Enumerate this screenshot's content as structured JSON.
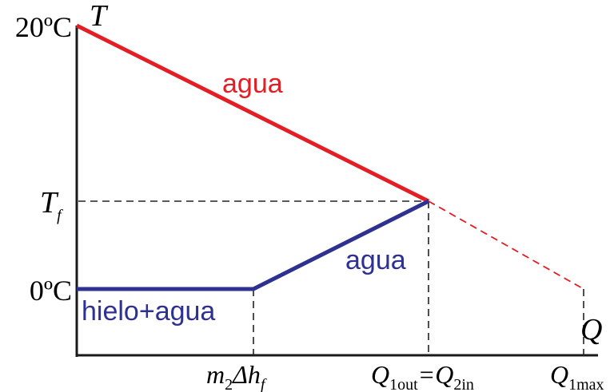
{
  "chart_data": {
    "type": "line",
    "y_axis_label": "T",
    "x_axis_label": "Q",
    "y_ticks": [
      "20ºC",
      "T",
      "0ºC"
    ],
    "y_tick_subscripts": [
      "",
      "f",
      ""
    ],
    "x_ticks": [
      {
        "parts": [
          {
            "t": "m",
            "s": ""
          },
          {
            "t": "2",
            "s": "sub"
          },
          {
            "t": "Δh",
            "s": ""
          },
          {
            "t": "f",
            "s": "sub-i"
          }
        ]
      },
      {
        "parts": [
          {
            "t": "Q",
            "s": ""
          },
          {
            "t": "1out",
            "s": "sub"
          },
          {
            "t": "=Q",
            "s": ""
          },
          {
            "t": "2in",
            "s": "sub"
          }
        ]
      },
      {
        "parts": [
          {
            "t": "Q",
            "s": ""
          },
          {
            "t": "1max",
            "s": "sub"
          }
        ]
      }
    ],
    "series": [
      {
        "label": "agua",
        "color": "#e31e24",
        "points": [
          [
            0,
            20
          ],
          [
            1,
            6.7
          ]
        ],
        "dashed_extension": [
          [
            1,
            6.7
          ],
          [
            1.45,
            0
          ]
        ]
      },
      {
        "label": "hielo+agua",
        "color": "#2e3192",
        "points": [
          [
            0,
            0
          ],
          [
            0.515,
            0
          ]
        ]
      },
      {
        "label": "agua",
        "color": "#2e3192",
        "points": [
          [
            0.515,
            0
          ],
          [
            1,
            6.7
          ]
        ]
      }
    ],
    "guides": "dashed",
    "grid": false
  }
}
